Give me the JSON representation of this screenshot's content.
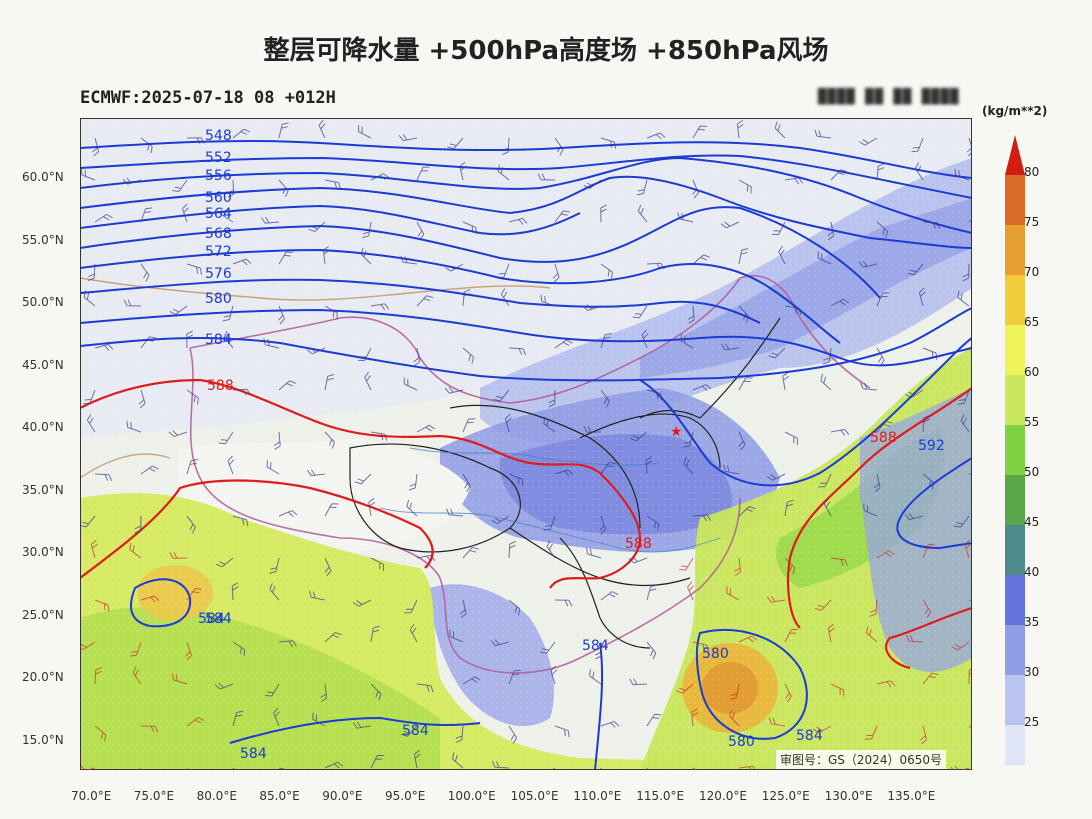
{
  "title": "整层可降水量 +500hPa高度场 +850hPa风场",
  "subtitle": "ECMWF:2025-07-18 08 +012H",
  "approval_number": "审图号：GS（2024）0650号",
  "colorbar": {
    "unit": "(kg/m**2)",
    "ticks": [
      "25",
      "30",
      "35",
      "40",
      "45",
      "50",
      "55",
      "60",
      "65",
      "70",
      "75",
      "80"
    ],
    "colors": [
      "#dfe6f7",
      "#b9c4ef",
      "#8f9ee6",
      "#6673dd",
      "#4d8a8a",
      "#5aa64b",
      "#7fd240",
      "#c9e860",
      "#eef35a",
      "#f0cc3a",
      "#e7a030",
      "#dc6a28",
      "#d01e10"
    ]
  },
  "map": {
    "lat_labels": [
      "60.0°N",
      "55.0°N",
      "50.0°N",
      "45.0°N",
      "40.0°N",
      "35.0°N",
      "30.0°N",
      "25.0°N",
      "20.0°N",
      "15.0°N"
    ],
    "lon_labels": [
      "70.0°E",
      "75.0°E",
      "80.0°E",
      "85.0°E",
      "90.0°E",
      "95.0°E",
      "100.0°E",
      "105.0°E",
      "110.0°E",
      "115.0°E",
      "120.0°E",
      "125.0°E",
      "130.0°E",
      "135.0°E"
    ],
    "contour_labels_blue": [
      "548",
      "552",
      "556",
      "560",
      "564",
      "568",
      "572",
      "576",
      "580",
      "584",
      "592",
      "584",
      "584",
      "580",
      "580",
      "584",
      "584",
      "584",
      "584"
    ],
    "contour_labels_red": [
      "588",
      "588",
      "588"
    ]
  }
}
